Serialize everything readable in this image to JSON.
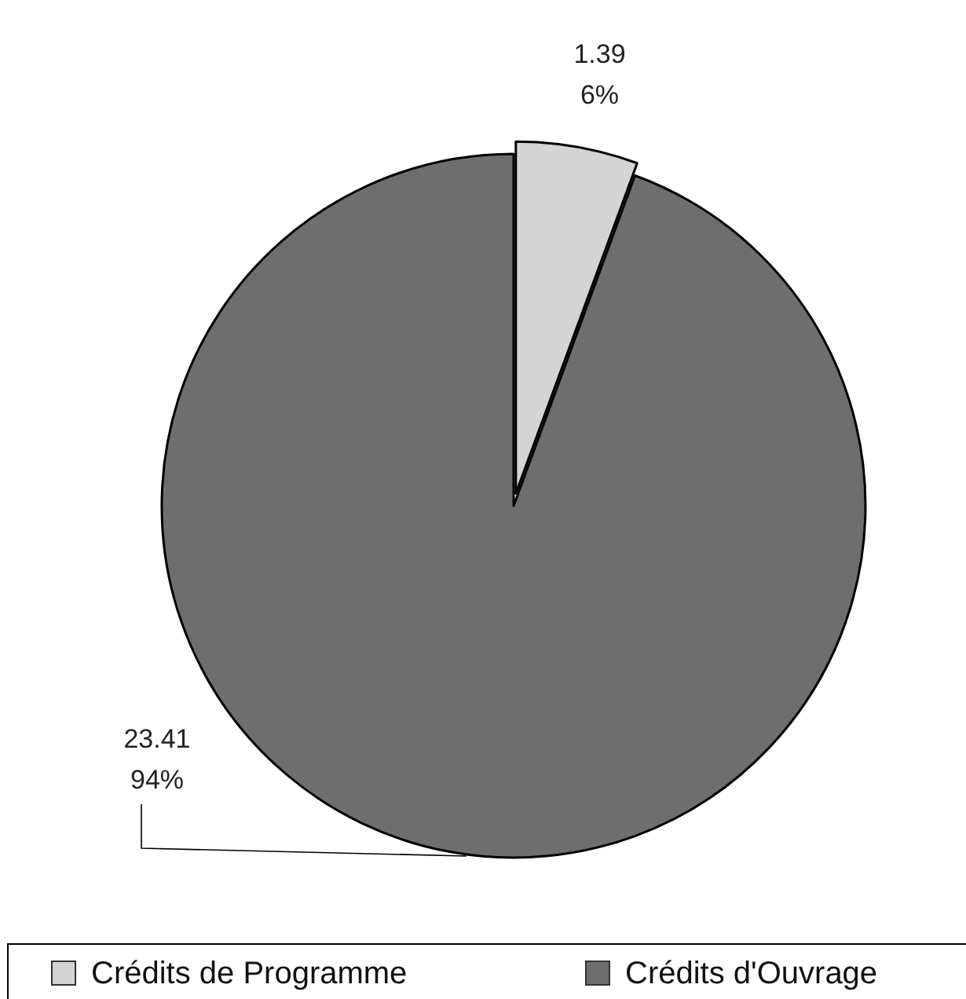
{
  "chart_data": {
    "type": "pie",
    "categories": [
      "Crédits de Programme",
      "Crédits d'Ouvrage"
    ],
    "values": [
      1.39,
      23.41
    ],
    "value_labels": [
      "1.39\n6%",
      "23.41\n94%"
    ],
    "colors": [
      "#d4d4d4",
      "#6e6e6e"
    ],
    "legend": "bottom"
  }
}
